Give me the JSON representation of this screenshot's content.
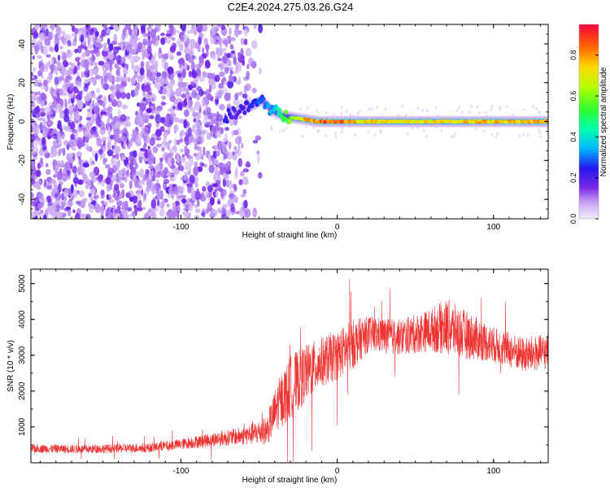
{
  "figure_title": "C2E4.2024.275.03.26.G24",
  "chart_data": [
    {
      "type": "heatmap",
      "title": "",
      "xlabel": "Height of straight line (km)",
      "ylabel": "Frequency (Hz)",
      "xlim": [
        -196,
        135
      ],
      "ylim": [
        -50,
        50
      ],
      "xticks": [
        -100,
        0,
        100
      ],
      "yticks": [
        -40,
        -20,
        0,
        20,
        40
      ],
      "colorbar": {
        "label": "Normalized spectral amplitude",
        "range": [
          0.0,
          0.95
        ],
        "ticks": [
          0.0,
          0.2,
          0.4,
          0.6,
          0.8
        ]
      },
      "ridge": {
        "x": [
          -72,
          -65,
          -55,
          -48,
          -42,
          -35,
          -28,
          -20,
          -12,
          -5,
          0,
          20,
          60,
          100,
          135
        ],
        "freq": [
          2,
          5,
          8,
          11,
          6,
          3,
          2,
          1,
          0,
          0,
          0,
          0,
          0,
          0,
          0
        ],
        "amplitude": [
          0.25,
          0.2,
          0.25,
          0.3,
          0.35,
          0.5,
          0.65,
          0.8,
          0.85,
          0.9,
          0.9,
          0.75,
          0.75,
          0.8,
          0.8
        ]
      },
      "noise_region_x": [
        -196,
        -55
      ],
      "noise_amplitude": 0.05
    },
    {
      "type": "line",
      "title": "",
      "xlabel": "Height of straight line (km)",
      "ylabel": "SNR (10 * v/v)",
      "xlim": [
        -196,
        135
      ],
      "ylim": [
        0,
        5400
      ],
      "xticks": [
        -100,
        0,
        100
      ],
      "yticks": [
        1000,
        2000,
        3000,
        4000,
        5000
      ],
      "series": [
        {
          "color": "#ee3333",
          "envelope": {
            "x": [
              -196,
              -160,
              -120,
              -100,
              -80,
              -60,
              -45,
              -38,
              -30,
              -20,
              -10,
              0,
              10,
              20,
              40,
              60,
              70,
              80,
              100,
              120,
              135
            ],
            "mean": [
              400,
              380,
              420,
              520,
              650,
              750,
              900,
              1600,
              2100,
              2500,
              2800,
              3000,
              3300,
              3600,
              3500,
              3700,
              3800,
              3600,
              3300,
              3000,
              3100
            ],
            "spread": [
              120,
              120,
              130,
              150,
              200,
              250,
              400,
              700,
              900,
              800,
              700,
              700,
              700,
              500,
              500,
              600,
              800,
              700,
              500,
              500,
              500
            ]
          }
        }
      ]
    }
  ]
}
